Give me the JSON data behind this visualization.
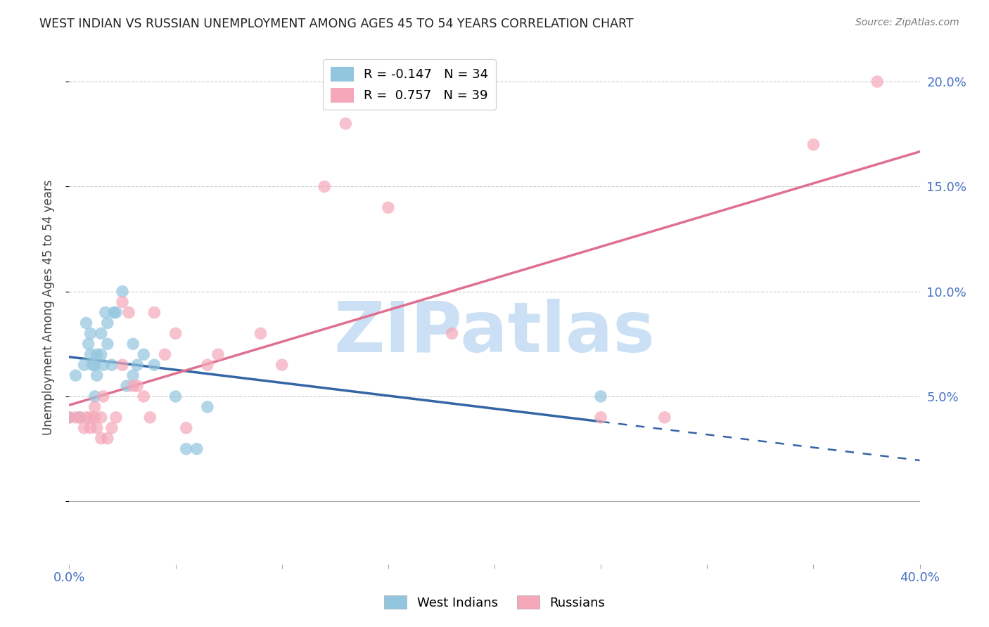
{
  "title": "WEST INDIAN VS RUSSIAN UNEMPLOYMENT AMONG AGES 45 TO 54 YEARS CORRELATION CHART",
  "source": "Source: ZipAtlas.com",
  "ylabel": "Unemployment Among Ages 45 to 54 years",
  "west_indian_label": "West Indians",
  "russian_label": "Russians",
  "west_indian_R": -0.147,
  "west_indian_N": 34,
  "russian_R": 0.757,
  "russian_N": 39,
  "west_indian_color": "#92c5de",
  "russian_color": "#f4a7b9",
  "west_indian_line_color": "#3465a4",
  "russian_line_color": "#e07090",
  "background_color": "#ffffff",
  "tick_label_color": "#4472c4",
  "xlim": [
    0.0,
    0.4
  ],
  "ylim": [
    -0.03,
    0.215
  ],
  "west_indian_x": [
    0.0,
    0.003,
    0.005,
    0.007,
    0.008,
    0.009,
    0.01,
    0.01,
    0.011,
    0.012,
    0.012,
    0.013,
    0.013,
    0.015,
    0.015,
    0.016,
    0.017,
    0.018,
    0.018,
    0.02,
    0.021,
    0.022,
    0.025,
    0.027,
    0.03,
    0.03,
    0.032,
    0.035,
    0.04,
    0.05,
    0.055,
    0.06,
    0.065,
    0.25
  ],
  "west_indian_y": [
    0.04,
    0.06,
    0.04,
    0.065,
    0.085,
    0.075,
    0.07,
    0.08,
    0.065,
    0.05,
    0.065,
    0.06,
    0.07,
    0.07,
    0.08,
    0.065,
    0.09,
    0.085,
    0.075,
    0.065,
    0.09,
    0.09,
    0.1,
    0.055,
    0.06,
    0.075,
    0.065,
    0.07,
    0.065,
    0.05,
    0.025,
    0.025,
    0.045,
    0.05
  ],
  "russian_x": [
    0.0,
    0.003,
    0.005,
    0.007,
    0.008,
    0.01,
    0.01,
    0.012,
    0.012,
    0.013,
    0.015,
    0.015,
    0.016,
    0.018,
    0.02,
    0.022,
    0.025,
    0.025,
    0.028,
    0.03,
    0.032,
    0.035,
    0.038,
    0.04,
    0.045,
    0.05,
    0.055,
    0.065,
    0.07,
    0.09,
    0.1,
    0.12,
    0.13,
    0.15,
    0.18,
    0.25,
    0.28,
    0.35,
    0.38
  ],
  "russian_y": [
    0.04,
    0.04,
    0.04,
    0.035,
    0.04,
    0.035,
    0.04,
    0.04,
    0.045,
    0.035,
    0.03,
    0.04,
    0.05,
    0.03,
    0.035,
    0.04,
    0.095,
    0.065,
    0.09,
    0.055,
    0.055,
    0.05,
    0.04,
    0.09,
    0.07,
    0.08,
    0.035,
    0.065,
    0.07,
    0.08,
    0.065,
    0.15,
    0.18,
    0.14,
    0.08,
    0.04,
    0.04,
    0.17,
    0.2
  ],
  "watermark_text": "ZIPatlas",
  "watermark_color": "#cce0f5",
  "grid_color": "#cccccc",
  "ytick_values": [
    0.0,
    0.05,
    0.1,
    0.15,
    0.2
  ],
  "xtick_values": [
    0.0,
    0.05,
    0.1,
    0.15,
    0.2,
    0.25,
    0.3,
    0.35,
    0.4
  ]
}
